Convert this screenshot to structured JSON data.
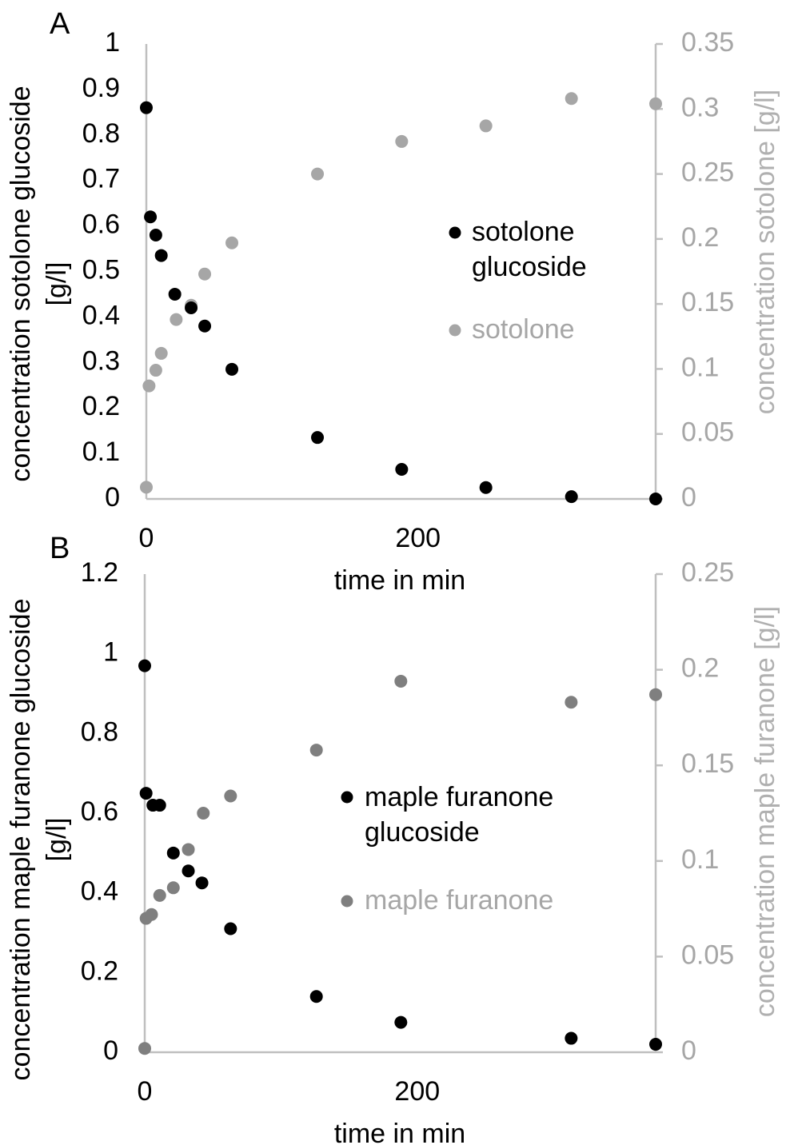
{
  "chart_data": [
    {
      "type": "scatter",
      "panel_label": "A",
      "xlabel": "time in min",
      "ylabel": [
        "concentration sotolone glucoside",
        "[g/l]"
      ],
      "y2label": "concentration sotolone [g/l]",
      "xlim": [
        0,
        375
      ],
      "x_ticks": [
        0,
        200
      ],
      "ylim": [
        0,
        1
      ],
      "y_ticks": [
        "0",
        "0.1",
        "0.2",
        "0.3",
        "0.4",
        "0.5",
        "0.6",
        "0.7",
        "0.8",
        "0.9",
        "1"
      ],
      "y2lim": [
        0,
        0.35
      ],
      "y2_ticks": [
        "0",
        "0.05",
        "0.1",
        "0.15",
        "0.2",
        "0.25",
        "0.3",
        "0.35"
      ],
      "legend_position": "center-right",
      "series": [
        {
          "name": [
            "sotolone",
            "glucoside"
          ],
          "axis": "left",
          "color": "#000000",
          "points": [
            [
              0,
              0.86
            ],
            [
              3,
              0.62
            ],
            [
              7,
              0.58
            ],
            [
              11,
              0.535
            ],
            [
              21,
              0.45
            ],
            [
              33,
              0.42
            ],
            [
              43,
              0.38
            ],
            [
              63,
              0.285
            ],
            [
              126,
              0.135
            ],
            [
              188,
              0.065
            ],
            [
              250,
              0.025
            ],
            [
              313,
              0.005
            ],
            [
              375,
              0.0
            ]
          ]
        },
        {
          "name": [
            "sotolone"
          ],
          "axis": "right",
          "color": "#a6a6a6",
          "points": [
            [
              0,
              0.009
            ],
            [
              2,
              0.087
            ],
            [
              7,
              0.099
            ],
            [
              11,
              0.112
            ],
            [
              22,
              0.138
            ],
            [
              33,
              0.149
            ],
            [
              43,
              0.173
            ],
            [
              63,
              0.197
            ],
            [
              126,
              0.25
            ],
            [
              188,
              0.275
            ],
            [
              250,
              0.287
            ],
            [
              313,
              0.308
            ],
            [
              375,
              0.304
            ]
          ]
        }
      ]
    },
    {
      "type": "scatter",
      "panel_label": "B",
      "xlabel": "time in min",
      "ylabel": [
        "concentration maple furanone glucoside",
        "[g/l]"
      ],
      "y2label": "concentration maple furanone [g/l]",
      "xlim": [
        0,
        375
      ],
      "x_ticks": [
        0,
        200
      ],
      "ylim": [
        0,
        1.2
      ],
      "y_ticks": [
        "0",
        "0.2",
        "0.4",
        "0.6",
        "0.8",
        "1",
        "1.2"
      ],
      "y2lim": [
        0,
        0.25
      ],
      "y2_ticks": [
        "0",
        "0.05",
        "0.1",
        "0.15",
        "0.2",
        "0.25"
      ],
      "legend_position": "center-right",
      "series": [
        {
          "name": [
            "maple furanone",
            "glucoside"
          ],
          "axis": "left",
          "color": "#000000",
          "points": [
            [
              0,
              0.97
            ],
            [
              1,
              0.65
            ],
            [
              6,
              0.62
            ],
            [
              11,
              0.62
            ],
            [
              21,
              0.5
            ],
            [
              32,
              0.455
            ],
            [
              42,
              0.425
            ],
            [
              63,
              0.31
            ],
            [
              126,
              0.14
            ],
            [
              188,
              0.075
            ],
            [
              313,
              0.035
            ],
            [
              375,
              0.02
            ]
          ]
        },
        {
          "name": [
            "maple furanone"
          ],
          "axis": "right",
          "color": "#7f7f7f",
          "points": [
            [
              0,
              0.002
            ],
            [
              1,
              0.07
            ],
            [
              5,
              0.072
            ],
            [
              11,
              0.082
            ],
            [
              21,
              0.086
            ],
            [
              32,
              0.106
            ],
            [
              43,
              0.125
            ],
            [
              63,
              0.134
            ],
            [
              126,
              0.158
            ],
            [
              188,
              0.194
            ],
            [
              313,
              0.183
            ],
            [
              375,
              0.187
            ]
          ]
        }
      ]
    }
  ]
}
